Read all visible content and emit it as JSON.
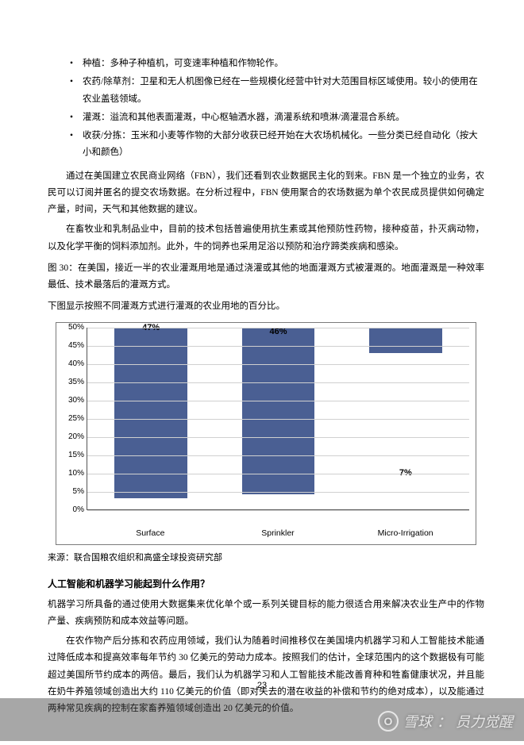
{
  "bullets": [
    "种植：多种子种植机，可变速率种植和作物轮作。",
    "农药/除草剂：卫星和无人机图像已经在一些规模化经营中针对大范围目标区域使用。较小的使用在农业盖毯领域。",
    "灌溉：溢流和其他表面灌溉，中心枢轴洒水器，滴灌系统和喷淋/滴灌混合系统。",
    "收获/分拣：玉米和小麦等作物的大部分收获已经开始在大农场机械化。一些分类已经自动化（按大小和颜色）"
  ],
  "paragraphs": {
    "p1": "通过在美国建立农民商业网络（FBN），我们还看到农业数据民主化的到来。FBN 是一个独立的业务，农民可以订阅并匿名的提交农场数据。在分析过程中，FBN 使用聚合的农场数据为单个农民成员提供如何确定产量，时间，天气和其他数据的建议。",
    "p2": "在畜牧业和乳制品业中，目前的技术包括普遍使用抗生素或其他预防性药物，接种疫苗，扑灭病动物，以及化学平衡的饲料添加剂。此外，牛的饲养也采用足浴以预防和治疗蹄类疾病和感染。",
    "fig": "图 30：在美国，接近一半的农业灌溉用地是通过浇灌或其他的地面灌溉方式被灌溉的。地面灌溉是一种效率最低、技术最落后的灌溉方式。",
    "sub": "下图显示按照不同灌溉方式进行灌溉的农业用地的百分比。",
    "source": "来源：联合国粮农组织和高盛全球投资研究部",
    "h1": "人工智能和机器学习能起到什么作用？",
    "b1": "机器学习所具备的通过使用大数据集来优化单个或一系列关键目标的能力很适合用来解决农业生产中的作物产量、疾病预防和成本效益等问题。",
    "b2": "在农作物产后分拣和农药应用领域，我们认为随着时间推移仅在美国境内机器学习和人工智能技术能通过降低成本和提高效率每年节约 30 亿美元的劳动力成本。按照我们的估计，全球范围内的这个数据极有可能超过美国所节约成本的两倍。最后，我们认为机器学习和人工智能技术能改善育种和牲畜健康状况，并且能在奶牛养殖领域创造出大约 110 亿美元的价值（即对失去的潜在收益的补偿和节约的绝对成本），以及能通过两种常见疾病的控制在家畜养殖领域创造出 20 亿美元的价值。"
  },
  "chart": {
    "ymax": 50,
    "ystep": 5,
    "bar_color": "#4a5f93",
    "grid_color": "#d0d0d0",
    "categories": [
      "Surface",
      "Sprinkler",
      "Micro-Irrigation"
    ],
    "values": [
      47,
      46,
      7
    ],
    "value_labels": [
      "47%",
      "46%",
      "7%"
    ]
  },
  "page_number": "23",
  "watermark": {
    "site": "雪球",
    "user": "员力觉醒"
  }
}
